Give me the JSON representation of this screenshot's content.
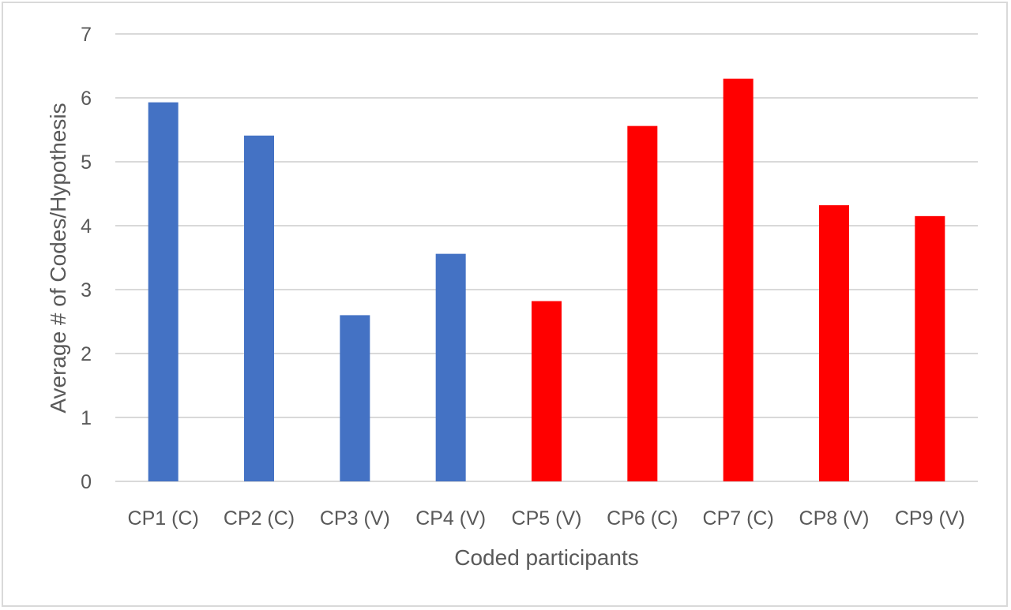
{
  "chart_data": {
    "type": "bar",
    "title": "",
    "xlabel": "Coded participants",
    "ylabel": "Average # of Codes/Hypothesis",
    "ylim": [
      0,
      7
    ],
    "yticks": [
      "0",
      "1",
      "2",
      "3",
      "4",
      "5",
      "6",
      "7"
    ],
    "grid": true,
    "legend": "none",
    "categories": [
      "CP1 (C)",
      "CP2 (C)",
      "CP3 (V)",
      "CP4 (V)",
      "CP5 (V)",
      "CP6 (C)",
      "CP7 (C)",
      "CP8 (V)",
      "CP9 (V)"
    ],
    "values": [
      5.93,
      5.41,
      2.6,
      3.56,
      2.82,
      5.56,
      6.3,
      4.32,
      4.15
    ],
    "bar_colors": [
      "#4472c4",
      "#4472c4",
      "#4472c4",
      "#4472c4",
      "#ff0000",
      "#ff0000",
      "#ff0000",
      "#ff0000",
      "#ff0000"
    ],
    "gridline_color": "#d9d9d9"
  }
}
